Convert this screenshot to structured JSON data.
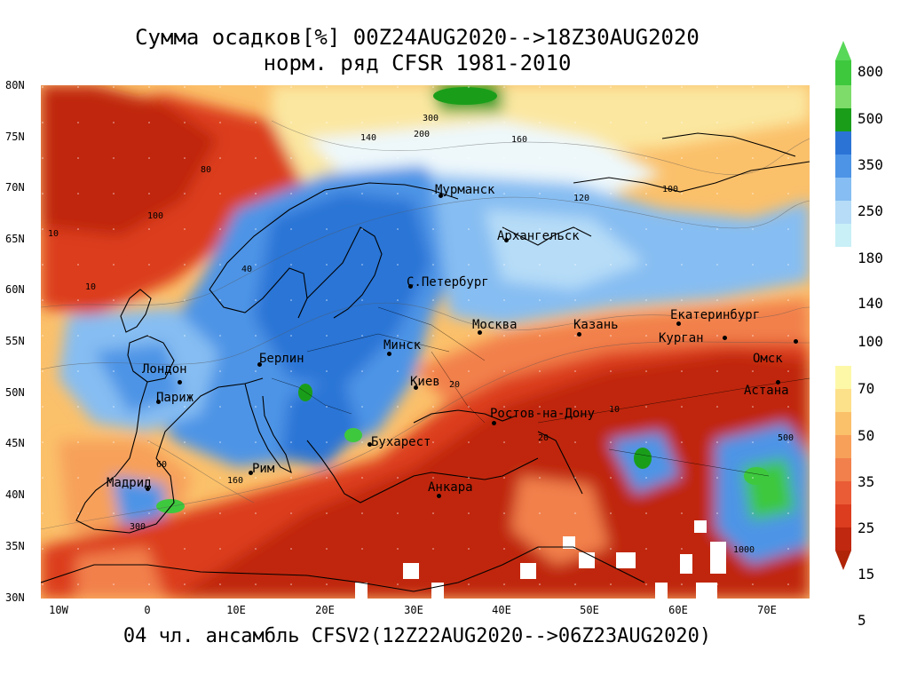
{
  "title_line1": "Сумма осадков[%] 00Z24AUG2020-->18Z30AUG2020",
  "title_line2": "норм. ряд CFSR 1981-2010",
  "footer": "04 чл. ансамбль CFSV2(12Z22AUG2020-->06Z23AUG2020)",
  "lat_labels": [
    "80N",
    "75N",
    "70N",
    "65N",
    "60N",
    "55N",
    "50N",
    "45N",
    "40N",
    "35N",
    "30N"
  ],
  "lon_labels": [
    "10W",
    "0",
    "10E",
    "20E",
    "30E",
    "40E",
    "50E",
    "60E",
    "70E"
  ],
  "colorbar": {
    "upper": [
      {
        "label": "800",
        "color": "#3ec83e"
      },
      {
        "label": "500",
        "color": "#7ddc6a"
      },
      {
        "label": "350",
        "color": "#1a9e1a"
      },
      {
        "label": "250",
        "color": "#2b74d6"
      },
      {
        "label": "180",
        "color": "#4d94e6"
      },
      {
        "label": "140",
        "color": "#86bdf2"
      },
      {
        "label": "",
        "color": "#b6dcf7"
      },
      {
        "label": "",
        "color": "#c8f0f6"
      }
    ],
    "mid_label": "100",
    "lower": [
      {
        "label": "70",
        "color": "#fdf8a8"
      },
      {
        "label": "50",
        "color": "#fde08a"
      },
      {
        "label": "",
        "color": "#fbc06a"
      },
      {
        "label": "35",
        "color": "#f7a05a"
      },
      {
        "label": "25",
        "color": "#f2804c"
      },
      {
        "label": "",
        "color": "#ea5c36"
      },
      {
        "label": "15",
        "color": "#dc3d1f"
      },
      {
        "label": "5",
        "color": "#c02810"
      }
    ],
    "top_arrow_color": "#58d858",
    "bottom_arrow_color": "#b02408"
  },
  "cities": [
    {
      "name": "Мурманск"
    },
    {
      "name": "Архангельск"
    },
    {
      "name": "С.Петербург"
    },
    {
      "name": "Москва"
    },
    {
      "name": "Казань"
    },
    {
      "name": "Екатеринбург"
    },
    {
      "name": "Курган"
    },
    {
      "name": "Омск"
    },
    {
      "name": "Астана"
    },
    {
      "name": "Минск"
    },
    {
      "name": "Киев"
    },
    {
      "name": "Берлин"
    },
    {
      "name": "Лондон"
    },
    {
      "name": "Париж"
    },
    {
      "name": "Ростов-на-Дону"
    },
    {
      "name": "Бухарест"
    },
    {
      "name": "Рим"
    },
    {
      "name": "Мадрид"
    },
    {
      "name": "Анкара"
    }
  ],
  "contour_labels": [
    "300",
    "200",
    "140",
    "160",
    "120",
    "100",
    "80",
    "60",
    "40",
    "20",
    "10",
    "500",
    "1000"
  ]
}
